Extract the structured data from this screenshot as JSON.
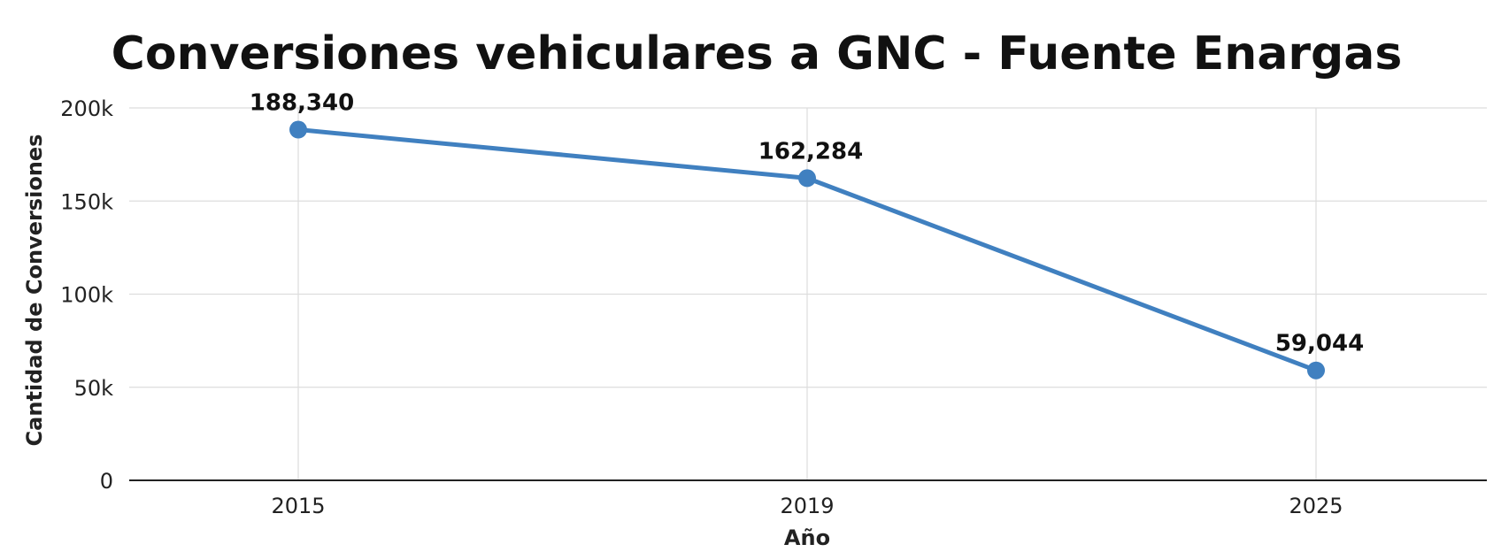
{
  "chart_data": {
    "type": "line",
    "title": "Conversiones vehiculares a GNC - Fuente Enargas",
    "xlabel": "Año",
    "ylabel": "Cantidad de Conversiones",
    "categories": [
      "2015",
      "2019",
      "2025"
    ],
    "series": [
      {
        "values": [
          188340,
          162284,
          59044
        ],
        "data_labels": [
          "188,340",
          "162,284",
          "59,044"
        ],
        "color": "#4080c0"
      }
    ],
    "ylim": [
      0,
      200000
    ],
    "yticks": [
      0,
      50000,
      100000,
      150000,
      200000
    ],
    "ytick_labels": [
      "0",
      "50k",
      "100k",
      "150k",
      "200k"
    ],
    "grid": true,
    "legend": "none"
  }
}
